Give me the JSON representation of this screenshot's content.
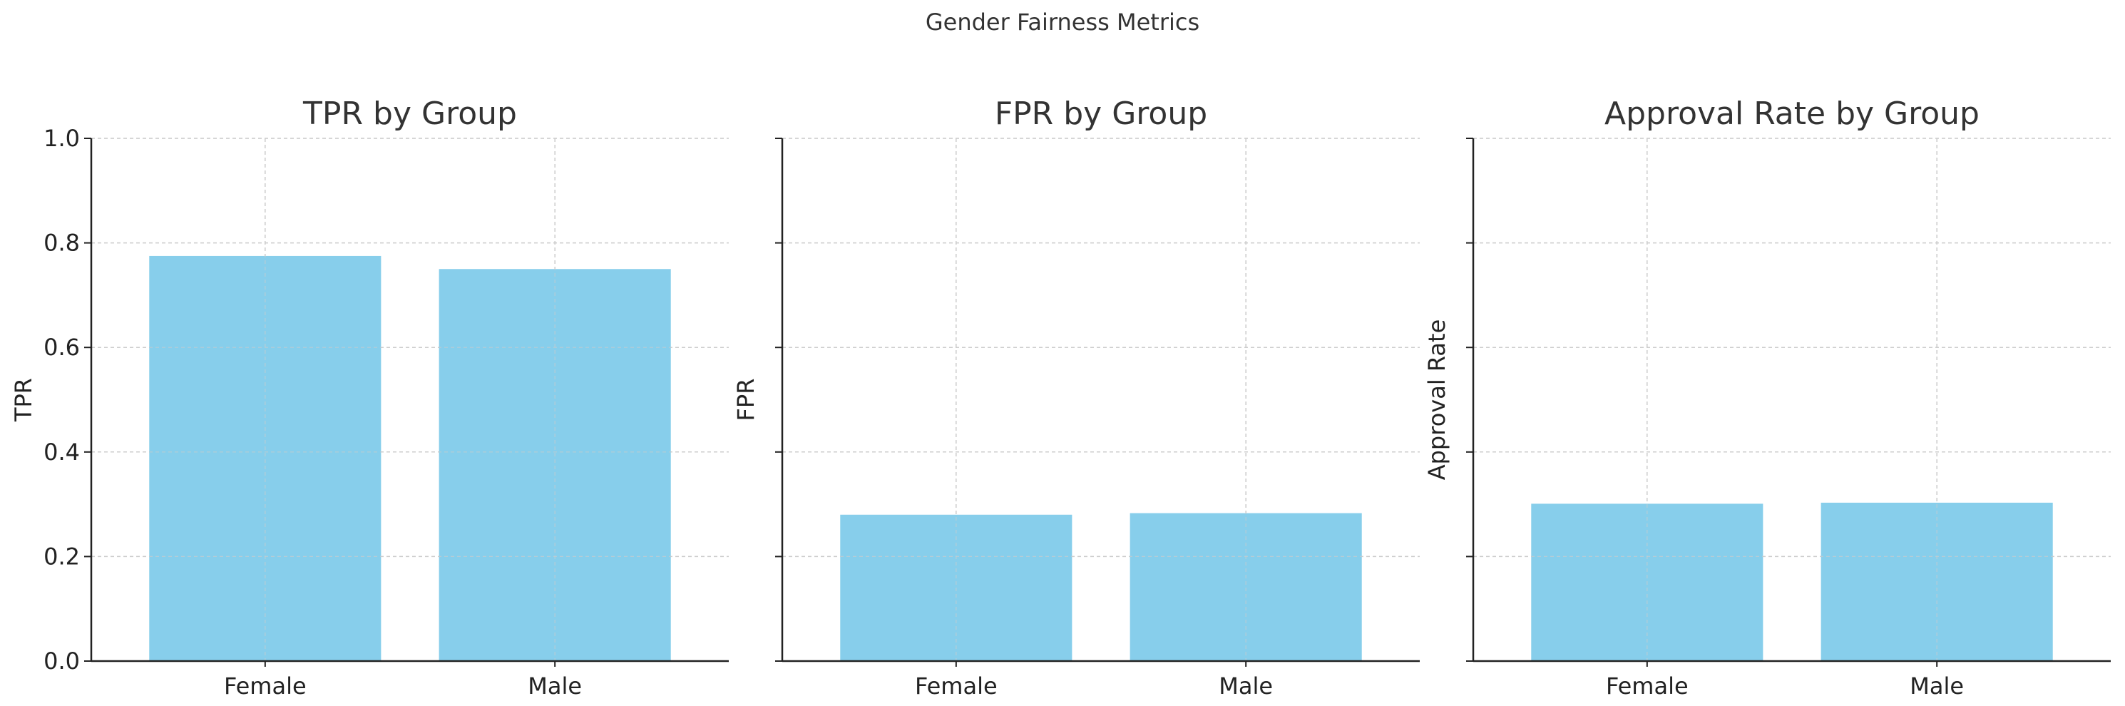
{
  "figure": {
    "title": "Gender Fairness Metrics"
  },
  "style": {
    "bar_color": "#87ceeb",
    "grid_color": "#cccccc",
    "axis_color": "#222222",
    "text_color": "#333333"
  },
  "chart_data": [
    {
      "type": "bar",
      "title": "TPR by Group",
      "xlabel": "",
      "ylabel": "TPR",
      "categories": [
        "Female",
        "Male"
      ],
      "values": [
        0.775,
        0.75
      ],
      "ylim": [
        0,
        1.0
      ],
      "yticks": [
        "0.0",
        "0.2",
        "0.4",
        "0.6",
        "0.8",
        "1.0"
      ],
      "show_ytick_labels": true,
      "grid": true
    },
    {
      "type": "bar",
      "title": "FPR by Group",
      "xlabel": "",
      "ylabel": "FPR",
      "categories": [
        "Female",
        "Male"
      ],
      "values": [
        0.28,
        0.283
      ],
      "ylim": [
        0,
        1.0
      ],
      "yticks": [
        "0.0",
        "0.2",
        "0.4",
        "0.6",
        "0.8",
        "1.0"
      ],
      "show_ytick_labels": false,
      "grid": true
    },
    {
      "type": "bar",
      "title": "Approval Rate by Group",
      "xlabel": "",
      "ylabel": "Approval Rate",
      "categories": [
        "Female",
        "Male"
      ],
      "values": [
        0.301,
        0.303
      ],
      "ylim": [
        0,
        1.0
      ],
      "yticks": [
        "0.0",
        "0.2",
        "0.4",
        "0.6",
        "0.8",
        "1.0"
      ],
      "show_ytick_labels": false,
      "grid": true
    }
  ]
}
